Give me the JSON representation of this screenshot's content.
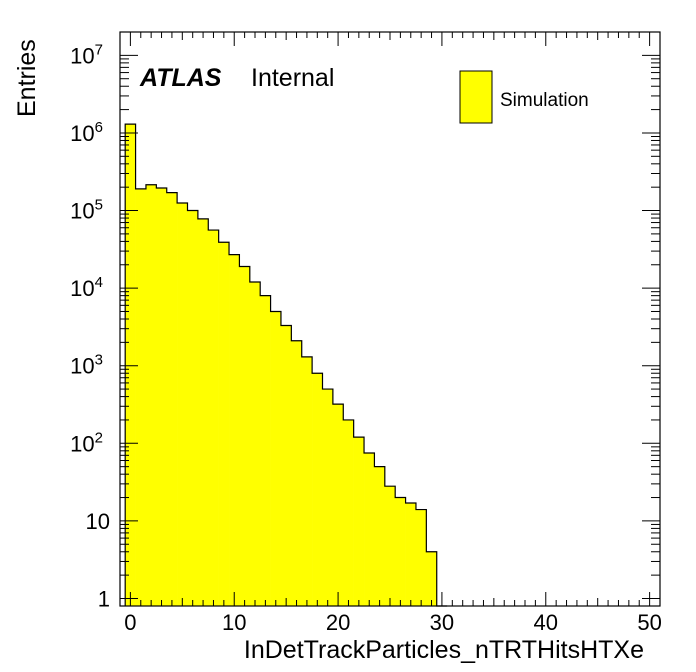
{
  "chart_data": {
    "type": "histogram",
    "xlabel": "InDetTrackParticles_nTRTHitsHTXe",
    "ylabel": "Entries",
    "y_scale": "log",
    "xlim": [
      -1,
      51
    ],
    "ylim": [
      0.8,
      20000000
    ],
    "bin_width": 1,
    "x_ticks": [
      0,
      10,
      20,
      30,
      40,
      50
    ],
    "y_ticks": [
      {
        "value": 1,
        "base": "1",
        "exp": ""
      },
      {
        "value": 10,
        "base": "10",
        "exp": ""
      },
      {
        "value": 100,
        "base": "10",
        "exp": "2"
      },
      {
        "value": 1000,
        "base": "10",
        "exp": "3"
      },
      {
        "value": 10000,
        "base": "10",
        "exp": "4"
      },
      {
        "value": 100000,
        "base": "10",
        "exp": "5"
      },
      {
        "value": 1000000,
        "base": "10",
        "exp": "6"
      },
      {
        "value": 10000000,
        "base": "10",
        "exp": "7"
      }
    ],
    "bins_low_edge": [
      -0.5,
      0.5,
      1.5,
      2.5,
      3.5,
      4.5,
      5.5,
      6.5,
      7.5,
      8.5,
      9.5,
      10.5,
      11.5,
      12.5,
      13.5,
      14.5,
      15.5,
      16.5,
      17.5,
      18.5,
      19.5,
      20.5,
      21.5,
      22.5,
      23.5,
      24.5,
      25.5,
      26.5,
      27.5,
      28.5,
      29.5
    ],
    "values": [
      1300000,
      190000,
      215000,
      195000,
      170000,
      125000,
      100000,
      78000,
      56000,
      39000,
      27000,
      19000,
      12000,
      8000,
      5000,
      3300,
      2100,
      1300,
      800,
      500,
      320,
      200,
      120,
      75,
      50,
      28,
      20,
      17,
      14,
      4,
      0
    ],
    "fill_color": "#ffff00",
    "line_color": "#000000",
    "legend": {
      "position": "top-right",
      "entries": [
        "Simulation"
      ]
    },
    "annotation": {
      "bold": "ATLAS",
      "normal": "Internal"
    }
  }
}
